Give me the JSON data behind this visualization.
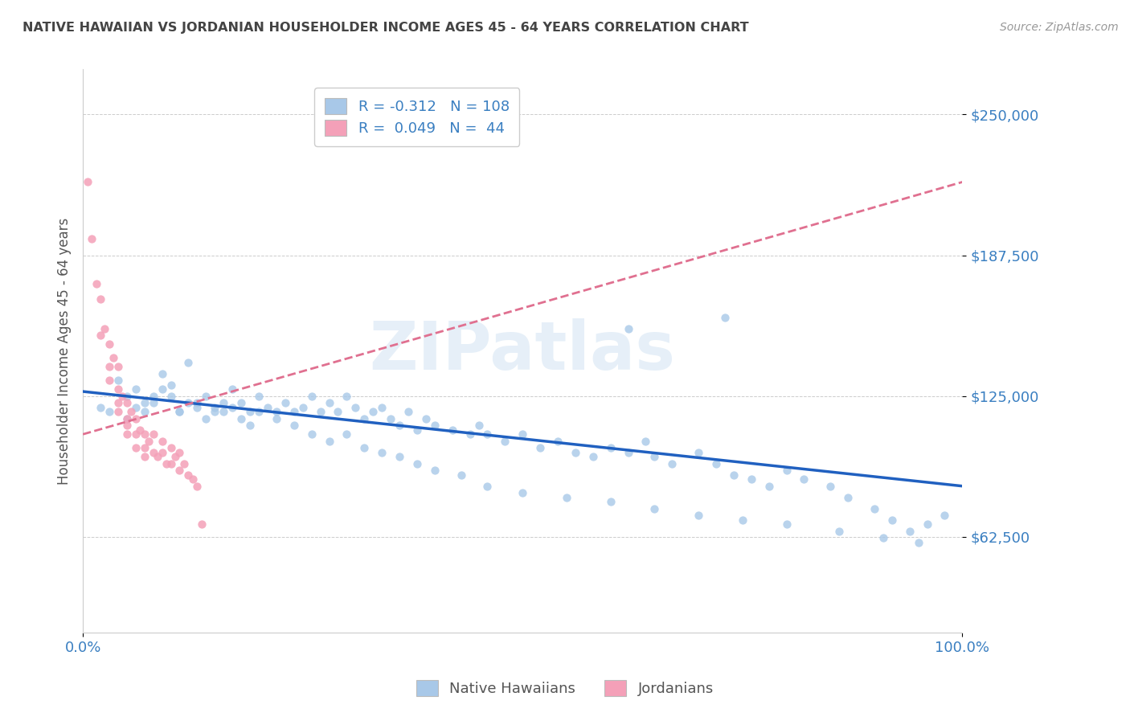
{
  "title": "NATIVE HAWAIIAN VS JORDANIAN HOUSEHOLDER INCOME AGES 45 - 64 YEARS CORRELATION CHART",
  "source": "Source: ZipAtlas.com",
  "ylabel": "Householder Income Ages 45 - 64 years",
  "yticks": [
    62500,
    125000,
    187500,
    250000
  ],
  "ytick_labels": [
    "$62,500",
    "$125,000",
    "$187,500",
    "$250,000"
  ],
  "xlim": [
    0.0,
    1.0
  ],
  "ylim": [
    20000,
    270000
  ],
  "color_blue": "#A8C8E8",
  "color_pink": "#F4A0B8",
  "trend_blue": "#2060C0",
  "trend_pink": "#E07090",
  "axis_color": "#3A7FC1",
  "watermark": "ZIPatlas",
  "blue_scatter_x": [
    0.02,
    0.03,
    0.04,
    0.05,
    0.06,
    0.07,
    0.08,
    0.09,
    0.1,
    0.11,
    0.12,
    0.13,
    0.14,
    0.15,
    0.16,
    0.17,
    0.18,
    0.19,
    0.2,
    0.21,
    0.22,
    0.23,
    0.24,
    0.25,
    0.26,
    0.27,
    0.28,
    0.29,
    0.3,
    0.31,
    0.32,
    0.33,
    0.34,
    0.35,
    0.36,
    0.37,
    0.38,
    0.39,
    0.4,
    0.42,
    0.44,
    0.45,
    0.46,
    0.48,
    0.5,
    0.52,
    0.54,
    0.56,
    0.58,
    0.6,
    0.62,
    0.64,
    0.65,
    0.67,
    0.7,
    0.72,
    0.74,
    0.76,
    0.78,
    0.8,
    0.82,
    0.85,
    0.87,
    0.9,
    0.92,
    0.94,
    0.96,
    0.98,
    0.05,
    0.06,
    0.07,
    0.08,
    0.09,
    0.1,
    0.11,
    0.12,
    0.13,
    0.14,
    0.15,
    0.16,
    0.17,
    0.18,
    0.19,
    0.2,
    0.22,
    0.24,
    0.26,
    0.28,
    0.3,
    0.32,
    0.34,
    0.36,
    0.38,
    0.4,
    0.43,
    0.46,
    0.5,
    0.55,
    0.6,
    0.65,
    0.7,
    0.75,
    0.8,
    0.86,
    0.91,
    0.95,
    0.62,
    0.73
  ],
  "blue_scatter_y": [
    120000,
    118000,
    132000,
    115000,
    128000,
    122000,
    125000,
    135000,
    130000,
    118000,
    140000,
    122000,
    125000,
    120000,
    118000,
    128000,
    122000,
    118000,
    125000,
    120000,
    118000,
    122000,
    118000,
    120000,
    125000,
    118000,
    122000,
    118000,
    125000,
    120000,
    115000,
    118000,
    120000,
    115000,
    112000,
    118000,
    110000,
    115000,
    112000,
    110000,
    108000,
    112000,
    108000,
    105000,
    108000,
    102000,
    105000,
    100000,
    98000,
    102000,
    100000,
    105000,
    98000,
    95000,
    100000,
    95000,
    90000,
    88000,
    85000,
    92000,
    88000,
    85000,
    80000,
    75000,
    70000,
    65000,
    68000,
    72000,
    125000,
    120000,
    118000,
    122000,
    128000,
    125000,
    118000,
    122000,
    120000,
    115000,
    118000,
    122000,
    120000,
    115000,
    112000,
    118000,
    115000,
    112000,
    108000,
    105000,
    108000,
    102000,
    100000,
    98000,
    95000,
    92000,
    90000,
    85000,
    82000,
    80000,
    78000,
    75000,
    72000,
    70000,
    68000,
    65000,
    62000,
    60000,
    155000,
    160000
  ],
  "pink_scatter_x": [
    0.005,
    0.01,
    0.015,
    0.02,
    0.02,
    0.025,
    0.03,
    0.03,
    0.03,
    0.035,
    0.04,
    0.04,
    0.04,
    0.04,
    0.045,
    0.05,
    0.05,
    0.05,
    0.05,
    0.055,
    0.06,
    0.06,
    0.06,
    0.065,
    0.07,
    0.07,
    0.07,
    0.075,
    0.08,
    0.08,
    0.085,
    0.09,
    0.09,
    0.095,
    0.1,
    0.1,
    0.105,
    0.11,
    0.11,
    0.115,
    0.12,
    0.125,
    0.13,
    0.135
  ],
  "pink_scatter_y": [
    220000,
    195000,
    175000,
    168000,
    152000,
    155000,
    148000,
    138000,
    132000,
    142000,
    138000,
    128000,
    122000,
    118000,
    125000,
    122000,
    115000,
    108000,
    112000,
    118000,
    115000,
    108000,
    102000,
    110000,
    108000,
    102000,
    98000,
    105000,
    108000,
    100000,
    98000,
    105000,
    100000,
    95000,
    102000,
    95000,
    98000,
    100000,
    92000,
    95000,
    90000,
    88000,
    85000,
    68000
  ]
}
